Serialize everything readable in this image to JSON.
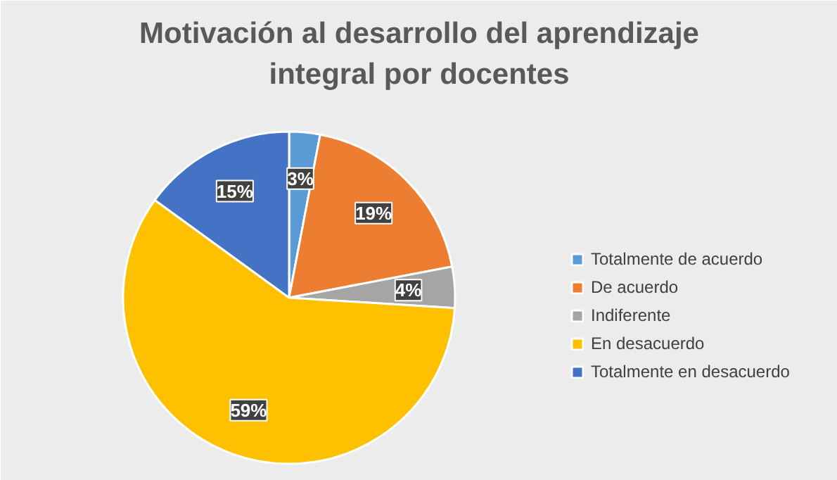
{
  "chart_data": {
    "type": "pie",
    "title": "Motivación al desarrollo del aprendizaje integral por docentes",
    "categories": [
      "Totalmente de acuerdo",
      "De acuerdo",
      "Indiferente",
      "En desacuerdo",
      "Totalmente en desacuerdo"
    ],
    "values": [
      3,
      19,
      4,
      59,
      15
    ],
    "colors": [
      "#5b9bd5",
      "#ed7d31",
      "#a5a5a5",
      "#ffc000",
      "#4472c4"
    ],
    "value_labels": [
      "3%",
      "19%",
      "4%",
      "59%",
      "15%"
    ],
    "legend": "right"
  }
}
